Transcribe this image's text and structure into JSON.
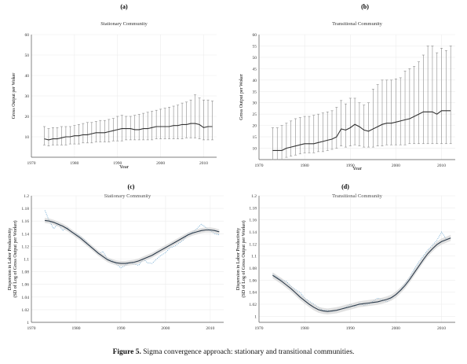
{
  "caption": {
    "label": "Figure 5.",
    "text": " Sigma convergence approach: stationary and transitional communities."
  },
  "chart_data": [
    {
      "panel": "(a)",
      "type": "line",
      "title": "Stationary Community",
      "xlabel": "Year",
      "ylabel": "Gross Output per Woker",
      "xlim": [
        1970,
        2013
      ],
      "ylim": [
        0,
        60
      ],
      "xticks": [
        1970,
        1980,
        1990,
        2000,
        2010
      ],
      "yticks": [
        10,
        20,
        30,
        40,
        50,
        60
      ],
      "grid": true,
      "series": [
        {
          "style": "mean-with-error-bars",
          "x": [
            1973,
            1974,
            1975,
            1976,
            1977,
            1978,
            1979,
            1980,
            1981,
            1982,
            1983,
            1984,
            1985,
            1986,
            1987,
            1988,
            1989,
            1990,
            1991,
            1992,
            1993,
            1994,
            1995,
            1996,
            1997,
            1998,
            1999,
            2000,
            2001,
            2002,
            2003,
            2004,
            2005,
            2006,
            2007,
            2008,
            2009,
            2010,
            2011,
            2012
          ],
          "y": [
            9,
            8.5,
            9,
            9,
            9.5,
            10,
            10,
            10.5,
            10.5,
            11,
            11,
            11.5,
            12,
            12,
            12,
            12.5,
            13,
            13.5,
            14,
            14,
            14,
            13.5,
            13.5,
            14,
            14,
            14.5,
            15,
            15,
            15,
            15,
            15.5,
            15.5,
            16,
            16,
            16.5,
            16.5,
            16,
            14.5,
            15,
            15
          ],
          "upper": [
            15,
            14,
            14.5,
            14.5,
            15,
            15,
            15,
            15.5,
            16,
            16.5,
            17,
            17,
            17.5,
            18,
            18,
            18.5,
            19,
            20,
            20.5,
            20,
            20,
            20.5,
            21,
            21.5,
            22,
            22.5,
            23,
            23.5,
            24,
            24.5,
            25,
            25.5,
            26.5,
            27,
            28,
            30.5,
            29,
            28,
            28,
            27.5
          ],
          "lower": [
            6,
            5.5,
            6,
            6,
            6,
            6,
            6.5,
            6.5,
            6.5,
            7,
            7,
            7,
            7.5,
            7.5,
            7.5,
            7.5,
            8,
            8,
            8,
            8.5,
            8.5,
            8.5,
            8.5,
            8.5,
            8.5,
            8.5,
            9,
            9,
            9,
            9,
            9,
            9,
            9,
            9.5,
            9.5,
            9.5,
            9,
            8.5,
            8.5,
            8.5
          ]
        }
      ]
    },
    {
      "panel": "(b)",
      "type": "line",
      "title": "Transitional Community",
      "xlabel": "Year",
      "ylabel": "Gross Output per Woker",
      "xlim": [
        1970,
        2013
      ],
      "ylim": [
        5,
        60
      ],
      "xticks": [
        1970,
        1980,
        1990,
        2000,
        2010
      ],
      "yticks": [
        10,
        15,
        20,
        25,
        30,
        35,
        40,
        45,
        50,
        55,
        60
      ],
      "grid": true,
      "series": [
        {
          "style": "mean-with-error-bars",
          "x": [
            1973,
            1974,
            1975,
            1976,
            1977,
            1978,
            1979,
            1980,
            1981,
            1982,
            1983,
            1984,
            1985,
            1986,
            1987,
            1988,
            1989,
            1990,
            1991,
            1992,
            1993,
            1994,
            1995,
            1996,
            1997,
            1998,
            1999,
            2000,
            2001,
            2002,
            2003,
            2004,
            2005,
            2006,
            2007,
            2008,
            2009,
            2010,
            2011,
            2012
          ],
          "y": [
            9,
            9,
            9,
            10,
            10.5,
            11,
            11.5,
            12,
            12,
            12,
            12.5,
            13,
            13.5,
            14,
            15,
            18.5,
            18,
            19,
            20.5,
            19.5,
            18,
            17.5,
            18.5,
            19.5,
            20.5,
            21,
            21,
            21.5,
            22,
            22.5,
            23,
            24,
            25,
            26,
            26,
            26,
            25,
            26.5,
            26.5,
            26.5
          ],
          "upper": [
            19,
            19,
            20,
            21,
            22,
            23,
            23.5,
            24,
            24,
            24.5,
            25,
            25.5,
            26,
            26.5,
            28,
            31,
            29.5,
            32,
            32,
            30,
            29,
            30,
            36,
            38,
            40,
            40,
            40,
            40.5,
            41,
            44,
            45,
            46,
            48,
            51,
            55,
            55,
            52,
            54,
            53,
            55
          ],
          "lower": [
            5,
            5,
            5,
            6,
            6.5,
            7,
            7.5,
            8,
            8,
            8,
            8.5,
            8.5,
            9,
            9.5,
            10,
            11,
            10.5,
            11,
            11.5,
            11,
            10.5,
            10.5,
            10.5,
            11,
            11,
            11.5,
            11.5,
            11.5,
            11.5,
            11.5,
            12,
            12,
            12,
            12,
            12,
            12,
            12,
            12,
            12,
            12
          ]
        }
      ]
    },
    {
      "panel": "(c)",
      "type": "line",
      "title": "Stationary Community",
      "xlabel": "",
      "ylabel": "Dispersion in Labor Productivity\n(SD of Log of Gross Output per Worker)",
      "xlim": [
        1970,
        2013
      ],
      "ylim": [
        1,
        1.2
      ],
      "xticks": [
        1970,
        1980,
        1990,
        2000,
        2010
      ],
      "yticks": [
        1,
        1.02,
        1.04,
        1.06,
        1.08,
        1.1,
        1.12,
        1.14,
        1.16,
        1.18,
        1.2
      ],
      "grid": true,
      "series": [
        {
          "name": "",
          "style": "raw-dotted",
          "x": [
            1973,
            1974,
            1975,
            1976,
            1977,
            1978,
            1979,
            1980,
            1981,
            1982,
            1983,
            1984,
            1985,
            1986,
            1987,
            1988,
            1989,
            1990,
            1991,
            1992,
            1993,
            1994,
            1995,
            1996,
            1997,
            1998,
            1999,
            2000,
            2001,
            2002,
            2003,
            2004,
            2005,
            2006,
            2007,
            2008,
            2009,
            2010,
            2011,
            2012
          ],
          "y": [
            1.177,
            1.16,
            1.148,
            1.156,
            1.145,
            1.15,
            1.142,
            1.14,
            1.135,
            1.13,
            1.12,
            1.115,
            1.108,
            1.112,
            1.1,
            1.098,
            1.092,
            1.086,
            1.09,
            1.095,
            1.092,
            1.09,
            1.1,
            1.094,
            1.093,
            1.1,
            1.106,
            1.11,
            1.118,
            1.12,
            1.125,
            1.13,
            1.14,
            1.142,
            1.148,
            1.155,
            1.15,
            1.145,
            1.14,
            1.138
          ]
        },
        {
          "name": "",
          "style": "smoothed",
          "x": [
            1973,
            1974,
            1975,
            1976,
            1977,
            1978,
            1979,
            1980,
            1981,
            1982,
            1983,
            1984,
            1985,
            1986,
            1987,
            1988,
            1989,
            1990,
            1991,
            1992,
            1993,
            1994,
            1995,
            1996,
            1997,
            1998,
            1999,
            2000,
            2001,
            2002,
            2003,
            2004,
            2005,
            2006,
            2007,
            2008,
            2009,
            2010,
            2011,
            2012
          ],
          "y": [
            1.161,
            1.16,
            1.158,
            1.155,
            1.152,
            1.148,
            1.143,
            1.138,
            1.133,
            1.127,
            1.121,
            1.115,
            1.109,
            1.104,
            1.099,
            1.096,
            1.094,
            1.093,
            1.093,
            1.094,
            1.095,
            1.097,
            1.1,
            1.103,
            1.106,
            1.11,
            1.114,
            1.118,
            1.122,
            1.126,
            1.13,
            1.134,
            1.138,
            1.141,
            1.143,
            1.145,
            1.146,
            1.146,
            1.145,
            1.143
          ],
          "band_width": 0.004
        }
      ]
    },
    {
      "panel": "(d)",
      "type": "line",
      "title": "Transitional Community",
      "xlabel": "",
      "ylabel": "Dispersion in Labor Productivity\n(SD of Log of Gross Output per Worker)",
      "xlim": [
        1970,
        2013
      ],
      "ylim": [
        0.99,
        1.2
      ],
      "xticks": [
        1970,
        1980,
        1990,
        2000,
        2010
      ],
      "yticks": [
        1,
        1.02,
        1.04,
        1.06,
        1.08,
        1.1,
        1.12,
        1.14,
        1.16,
        1.18,
        1.2
      ],
      "grid": true,
      "series": [
        {
          "name": "",
          "style": "raw-dotted",
          "x": [
            1973,
            1974,
            1975,
            1976,
            1977,
            1978,
            1979,
            1980,
            1981,
            1982,
            1983,
            1984,
            1985,
            1986,
            1987,
            1988,
            1989,
            1990,
            1991,
            1992,
            1993,
            1994,
            1995,
            1996,
            1997,
            1998,
            1999,
            2000,
            2001,
            2002,
            2003,
            2004,
            2005,
            2006,
            2007,
            2008,
            2009,
            2010,
            2011,
            2012
          ],
          "y": [
            1.07,
            1.065,
            1.06,
            1.058,
            1.05,
            1.044,
            1.04,
            1.03,
            1.025,
            1.02,
            1.015,
            1.01,
            1.01,
            1.008,
            1.01,
            1.012,
            1.015,
            1.02,
            1.016,
            1.022,
            1.018,
            1.02,
            1.025,
            1.03,
            1.028,
            1.024,
            1.03,
            1.036,
            1.044,
            1.054,
            1.065,
            1.078,
            1.09,
            1.1,
            1.11,
            1.118,
            1.126,
            1.14,
            1.128,
            1.13
          ]
        },
        {
          "name": "",
          "style": "smoothed",
          "x": [
            1973,
            1974,
            1975,
            1976,
            1977,
            1978,
            1979,
            1980,
            1981,
            1982,
            1983,
            1984,
            1985,
            1986,
            1987,
            1988,
            1989,
            1990,
            1991,
            1992,
            1993,
            1994,
            1995,
            1996,
            1997,
            1998,
            1999,
            2000,
            2001,
            2002,
            2003,
            2004,
            2005,
            2006,
            2007,
            2008,
            2009,
            2010,
            2011,
            2012
          ],
          "y": [
            1.068,
            1.063,
            1.058,
            1.052,
            1.046,
            1.039,
            1.032,
            1.026,
            1.02,
            1.015,
            1.011,
            1.009,
            1.008,
            1.009,
            1.01,
            1.012,
            1.014,
            1.016,
            1.018,
            1.02,
            1.021,
            1.022,
            1.023,
            1.024,
            1.026,
            1.028,
            1.031,
            1.036,
            1.043,
            1.051,
            1.061,
            1.072,
            1.083,
            1.094,
            1.104,
            1.112,
            1.119,
            1.124,
            1.127,
            1.13
          ],
          "band_width": 0.005
        }
      ]
    }
  ]
}
